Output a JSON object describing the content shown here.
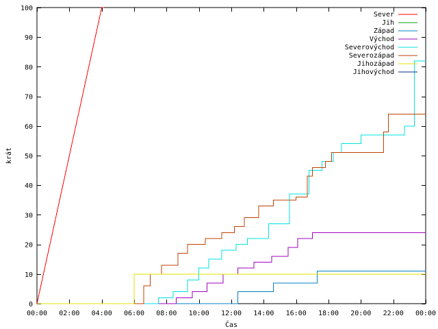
{
  "chart_data": {
    "type": "line",
    "title": "",
    "xlabel": "Čas",
    "ylabel": "krát",
    "xlim": [
      0,
      24
    ],
    "ylim": [
      0,
      100
    ],
    "x_ticks": [
      0,
      2,
      4,
      6,
      8,
      10,
      12,
      14,
      16,
      18,
      20,
      22,
      24
    ],
    "x_tick_labels": [
      "00:00",
      "02:00",
      "04:00",
      "06:00",
      "08:00",
      "10:00",
      "12:00",
      "14:00",
      "16:00",
      "18:00",
      "20:00",
      "22:00",
      "00:00"
    ],
    "y_ticks": [
      0,
      10,
      20,
      30,
      40,
      50,
      60,
      70,
      80,
      90,
      100
    ],
    "y_tick_labels": [
      "0",
      "10",
      "20",
      "30",
      "40",
      "50",
      "60",
      "70",
      "80",
      "90",
      "100"
    ],
    "grid": false,
    "legend_position": "top-right",
    "series": [
      {
        "name": "Sever",
        "color": "#ff0000",
        "x": [
          0,
          4,
          4.15
        ],
        "y": [
          0,
          100,
          100
        ]
      },
      {
        "name": "Jih",
        "color": "#00a000",
        "x": [],
        "y": []
      },
      {
        "name": "Západ",
        "color": "#0080c0",
        "x": [
          0,
          12.3,
          12.4,
          14.6,
          17.3,
          24
        ],
        "y": [
          0,
          0,
          4,
          7,
          11,
          11
        ]
      },
      {
        "name": "Východ",
        "color": "#a000c0",
        "x": [
          0,
          8.2,
          8.6,
          9.6,
          10.5,
          11.5,
          12.4,
          13.4,
          14.5,
          15.5,
          16.1,
          17.0,
          24
        ],
        "y": [
          0,
          0,
          2,
          4,
          7,
          10,
          12,
          14,
          16,
          19,
          22,
          24,
          24
        ]
      },
      {
        "name": "Severovýchod",
        "color": "#00e0e0",
        "x": [
          0,
          6.8,
          7.5,
          8.4,
          9.3,
          10.0,
          10.6,
          11.4,
          12.3,
          13.0,
          14.3,
          15.6,
          16.8,
          17.6,
          18.3,
          18.8,
          20.0,
          21.8,
          22.7,
          23.3,
          24
        ],
        "y": [
          0,
          0,
          2,
          4,
          8,
          12,
          15,
          18,
          20,
          22,
          27,
          37,
          45,
          48,
          51,
          54,
          57,
          57,
          60,
          82,
          82
        ]
      },
      {
        "name": "Severozápad",
        "color": "#c04000",
        "x": [
          0,
          6.1,
          6.6,
          7.0,
          7.7,
          8.7,
          9.3,
          10.4,
          11.4,
          12.2,
          12.8,
          13.7,
          14.6,
          16.0,
          16.7,
          17.0,
          17.8,
          18.2,
          20.9,
          21.4,
          21.7,
          24
        ],
        "y": [
          0,
          0,
          6,
          10,
          13,
          17,
          20,
          22,
          24,
          26,
          29,
          33,
          35,
          36,
          43,
          46,
          48,
          51,
          51,
          58,
          64,
          64
        ]
      },
      {
        "name": "Jihozápad",
        "color": "#e0e000",
        "x": [
          0,
          5.6,
          6.0,
          24
        ],
        "y": [
          0,
          0,
          10,
          10
        ]
      },
      {
        "name": "Jihovýchod",
        "color": "#003080",
        "x": [],
        "y": []
      }
    ]
  }
}
